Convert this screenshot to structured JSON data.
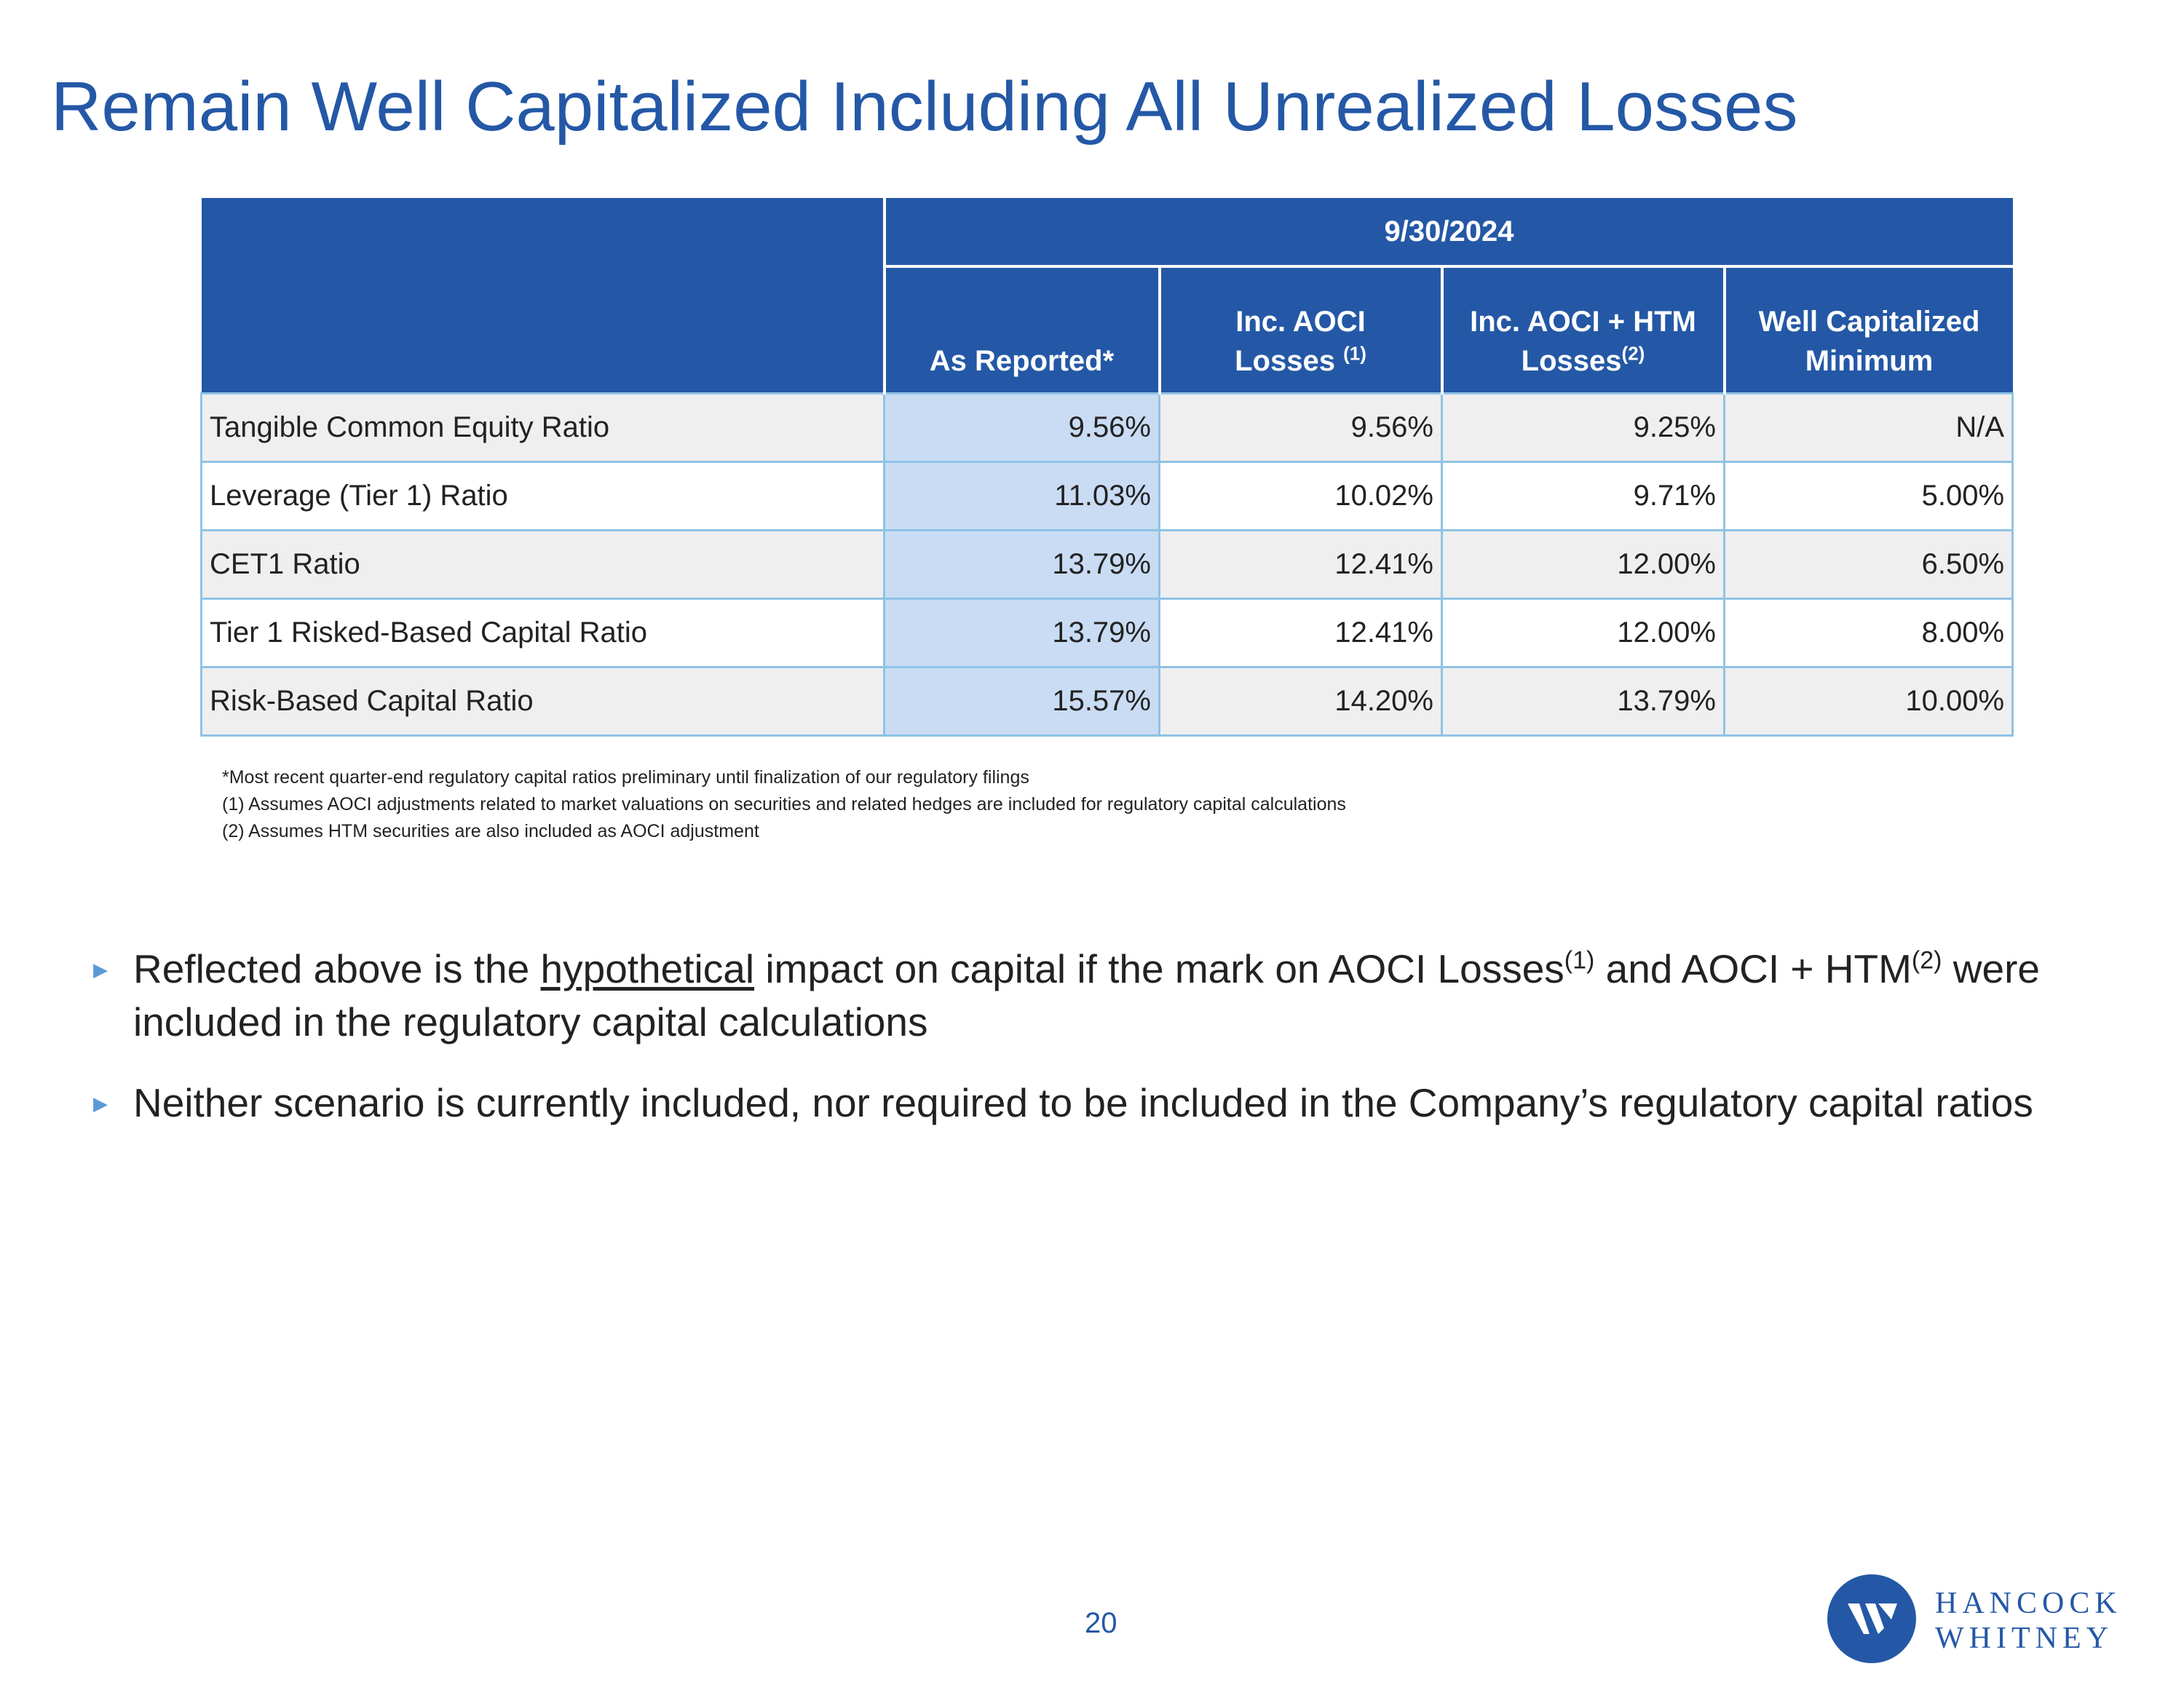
{
  "title": "Remain Well Capitalized Including All Unrealized Losses",
  "table": {
    "date_header": "9/30/2024",
    "columns": [
      {
        "text": "As Reported*",
        "sup": ""
      },
      {
        "text": "Inc. AOCI",
        "text2": "Losses",
        "sup": "(1)"
      },
      {
        "text": "Inc. AOCI + HTM",
        "text2": "Losses",
        "sup": "(2)"
      },
      {
        "text": "Well Capitalized",
        "text2": "Minimum",
        "sup": ""
      }
    ],
    "rows": [
      {
        "label": "Tangible Common Equity Ratio",
        "values": [
          "9.56%",
          "9.56%",
          "9.25%",
          "N/A"
        ]
      },
      {
        "label": "Leverage (Tier 1) Ratio",
        "values": [
          "11.03%",
          "10.02%",
          "9.71%",
          "5.00%"
        ]
      },
      {
        "label": "CET1 Ratio",
        "values": [
          "13.79%",
          "12.41%",
          "12.00%",
          "6.50%"
        ]
      },
      {
        "label": "Tier 1 Risked-Based Capital Ratio",
        "values": [
          "13.79%",
          "12.41%",
          "12.00%",
          "8.00%"
        ]
      },
      {
        "label": "Risk-Based Capital Ratio",
        "values": [
          "15.57%",
          "14.20%",
          "13.79%",
          "10.00%"
        ]
      }
    ]
  },
  "footnotes": [
    "*Most recent quarter-end regulatory capital ratios preliminary until finalization of our regulatory filings",
    "(1)  Assumes AOCI adjustments related to market valuations on securities and related hedges are included for regulatory capital calculations",
    "(2)  Assumes HTM securities are also included as AOCI adjustment"
  ],
  "bullets": {
    "b1_part1": "Reflected above is the ",
    "b1_underlined": "hypothetical",
    "b1_part2": " impact on capital if the mark on AOCI Losses",
    "b1_sup1": "(1)",
    "b1_part3": " and AOCI + HTM",
    "b1_sup2": "(2)",
    "b1_part4": " were included in the regulatory capital calculations",
    "b2": "Neither scenario is currently included, nor required to be included in the Company’s regulatory capital ratios"
  },
  "page_number": "20",
  "logo": {
    "line1": "HANCOCK",
    "line2": "WHITNEY"
  },
  "colors": {
    "brand_blue": "#2458a6",
    "highlight": "#c9dcf3",
    "row_shade": "#efefef",
    "grid": "#8fc3e6"
  }
}
